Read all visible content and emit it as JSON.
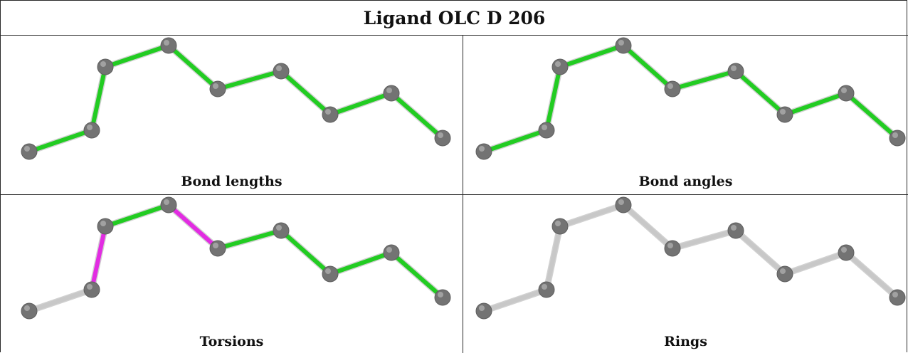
{
  "title": "Ligand OLC D 206",
  "colors": {
    "atom": "#737373",
    "atom_highlight": "#b5b5b5",
    "bond_ok": "#22cc22",
    "bond_flag": "#e22ce2",
    "bond_none": "#c8c8c8"
  },
  "panels": [
    {
      "caption": "Bond lengths",
      "bond_colors": [
        "bond_ok",
        "bond_ok",
        "bond_ok",
        "bond_ok",
        "bond_ok",
        "bond_ok",
        "bond_ok",
        "bond_ok",
        "bond_ok"
      ]
    },
    {
      "caption": "Bond angles",
      "bond_colors": [
        "bond_ok",
        "bond_ok",
        "bond_ok",
        "bond_ok",
        "bond_ok",
        "bond_ok",
        "bond_ok",
        "bond_ok",
        "bond_ok"
      ]
    },
    {
      "caption": "Torsions",
      "bond_colors": [
        "bond_none",
        "bond_flag",
        "bond_ok",
        "bond_flag",
        "bond_ok",
        "bond_ok",
        "bond_ok",
        "bond_ok",
        "bond_none"
      ]
    },
    {
      "caption": "Rings",
      "bond_colors": [
        "bond_none",
        "bond_none",
        "bond_none",
        "bond_none",
        "bond_none",
        "bond_none",
        "bond_none",
        "bond_none",
        "bond_none"
      ]
    }
  ]
}
